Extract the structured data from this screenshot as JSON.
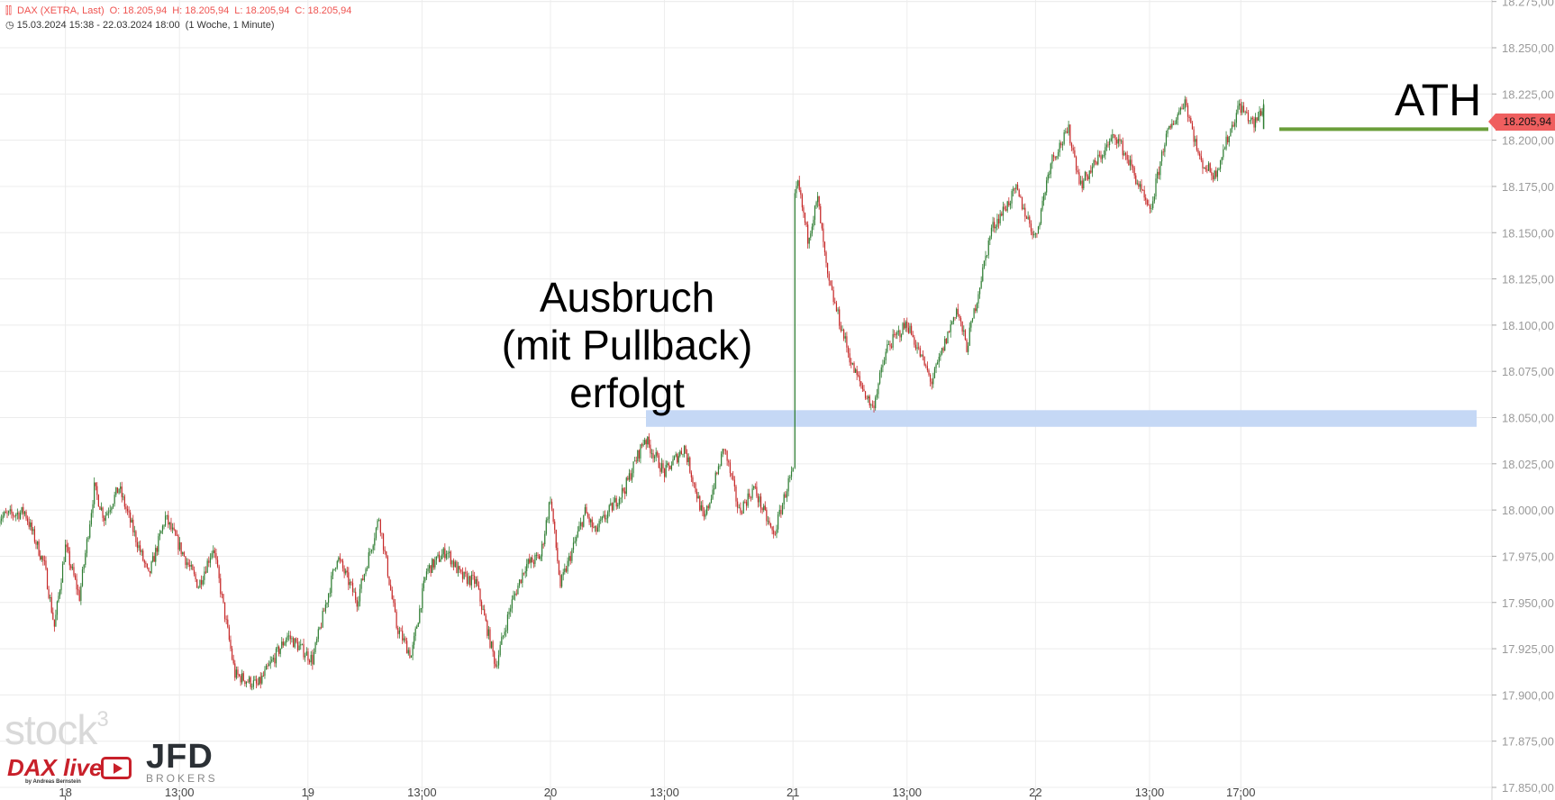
{
  "header": {
    "instrument": "DAX (XETRA, Last)",
    "open": "O: 18.205,94",
    "high": "H: 18.205,94",
    "low": "L: 18.205,94",
    "close": "C: 18.205,94",
    "range": "15.03.2024 15:38 - 22.03.2024 18:00",
    "period": "(1 Woche, 1 Minute)",
    "instrument_icon": "candles-icon",
    "range_icon": "clock-icon"
  },
  "annotations": {
    "breakout_lines": [
      "Ausbruch",
      "(mit Pullback)",
      "erfolgt"
    ],
    "ath": "ATH",
    "zone_color": "#c5d8f5",
    "ath_line_color": "#6a9e3a"
  },
  "last_price_tag": "18.205,94",
  "logos": {
    "stock3": "stock",
    "stock3_sup": "3",
    "dax_live": "DAX live",
    "dax_live_by": "by Andreas Bernstein",
    "jfd": "JFD",
    "jfd_sub": "BROKERS"
  },
  "chart_data": {
    "type": "candlestick",
    "title": "",
    "xlabel": "",
    "ylabel": "",
    "ylim": [
      17850,
      18275
    ],
    "y_ticks": [
      "18.275,00",
      "18.250,00",
      "18.225,00",
      "18.200,00",
      "18.175,00",
      "18.150,00",
      "18.125,00",
      "18.100,00",
      "18.075,00",
      "18.050,00",
      "18.025,00",
      "18.000,00",
      "17.975,00",
      "17.950,00",
      "17.925,00",
      "17.900,00",
      "17.875,00",
      "17.850,00"
    ],
    "x_ticks": [
      {
        "label": "18",
        "day": "18",
        "time": "08:00"
      },
      {
        "label": "13:00",
        "day": "18",
        "time": "13:00"
      },
      {
        "label": "19",
        "day": "19",
        "time": "08:00"
      },
      {
        "label": "13:00",
        "day": "19",
        "time": "13:00"
      },
      {
        "label": "20",
        "day": "20",
        "time": "08:00"
      },
      {
        "label": "13:00",
        "day": "20",
        "time": "13:00"
      },
      {
        "label": "21",
        "day": "21",
        "time": "08:00"
      },
      {
        "label": "13:00",
        "day": "21",
        "time": "13:00"
      },
      {
        "label": "22",
        "day": "22",
        "time": "08:00"
      },
      {
        "label": "13:00",
        "day": "22",
        "time": "13:00"
      },
      {
        "label": "17:00",
        "day": "22",
        "time": "17:00"
      }
    ],
    "grid": true,
    "up_color": "#2e7d32",
    "down_color": "#c62828",
    "price_path": [
      [
        "15",
        "15:38",
        17996
      ],
      [
        "15",
        "16:51",
        17999
      ],
      [
        "15",
        "17:43",
        17970
      ],
      [
        "15",
        "18:09",
        17937
      ],
      [
        "18",
        "08:00",
        17980
      ],
      [
        "18",
        "08:37",
        17953
      ],
      [
        "18",
        "09:16",
        18012
      ],
      [
        "18",
        "09:42",
        17996
      ],
      [
        "18",
        "10:21",
        18012
      ],
      [
        "18",
        "11:39",
        17964
      ],
      [
        "18",
        "12:23",
        17996
      ],
      [
        "18",
        "13:50",
        17959
      ],
      [
        "18",
        "14:29",
        17980
      ],
      [
        "18",
        "15:26",
        17911
      ],
      [
        "18",
        "16:26",
        17905
      ],
      [
        "18",
        "17:44",
        17932
      ],
      [
        "19",
        "08:12",
        17919
      ],
      [
        "19",
        "09:17",
        17975
      ],
      [
        "19",
        "10:09",
        17951
      ],
      [
        "19",
        "11:07",
        17996
      ],
      [
        "19",
        "11:53",
        17937
      ],
      [
        "19",
        "12:32",
        17921
      ],
      [
        "19",
        "13:12",
        17967
      ],
      [
        "19",
        "14:04",
        17978
      ],
      [
        "19",
        "14:43",
        17964
      ],
      [
        "19",
        "15:22",
        17961
      ],
      [
        "19",
        "16:14",
        17916
      ],
      [
        "19",
        "16:53",
        17948
      ],
      [
        "19",
        "17:32",
        17970
      ],
      [
        "19",
        "18:12",
        17975
      ],
      [
        "20",
        "08:00",
        18007
      ],
      [
        "20",
        "08:26",
        17959
      ],
      [
        "20",
        "09:31",
        17999
      ],
      [
        "20",
        "09:57",
        17988
      ],
      [
        "20",
        "11:16",
        18012
      ],
      [
        "20",
        "12:08",
        18039
      ],
      [
        "20",
        "13:00",
        18020
      ],
      [
        "20",
        "13:52",
        18034
      ],
      [
        "20",
        "14:44",
        17994
      ],
      [
        "20",
        "15:37",
        18034
      ],
      [
        "20",
        "16:16",
        17999
      ],
      [
        "20",
        "16:55",
        18012
      ],
      [
        "20",
        "17:47",
        17986
      ],
      [
        "20",
        "18:26",
        18015
      ],
      [
        "21",
        "08:00",
        18020
      ],
      [
        "21",
        "08:05",
        18168
      ],
      [
        "21",
        "08:13",
        18176
      ],
      [
        "21",
        "08:39",
        18147
      ],
      [
        "21",
        "09:05",
        18168
      ],
      [
        "21",
        "09:31",
        18125
      ],
      [
        "21",
        "10:37",
        18077
      ],
      [
        "21",
        "11:29",
        18055
      ],
      [
        "21",
        "12:08",
        18088
      ],
      [
        "21",
        "13:00",
        18101
      ],
      [
        "21",
        "14:05",
        18069
      ],
      [
        "21",
        "15:10",
        18109
      ],
      [
        "21",
        "15:37",
        18088
      ],
      [
        "21",
        "16:42",
        18152
      ],
      [
        "21",
        "17:47",
        18173
      ],
      [
        "22",
        "08:00",
        18147
      ],
      [
        "22",
        "08:40",
        18189
      ],
      [
        "22",
        "09:27",
        18205
      ],
      [
        "22",
        "09:59",
        18176
      ],
      [
        "22",
        "11:30",
        18203
      ],
      [
        "22",
        "12:09",
        18187
      ],
      [
        "22",
        "13:01",
        18160
      ],
      [
        "22",
        "13:40",
        18200
      ],
      [
        "22",
        "14:33",
        18222
      ],
      [
        "22",
        "15:12",
        18189
      ],
      [
        "22",
        "15:51",
        18181
      ],
      [
        "22",
        "16:56",
        18219
      ],
      [
        "22",
        "17:35",
        18208
      ],
      [
        "22",
        "18:00",
        18219
      ],
      [
        "22",
        "18:00",
        18206
      ]
    ],
    "support_zone": [
      18045,
      18054
    ],
    "ath_level": 18205.94,
    "last_price": 18205.94
  }
}
